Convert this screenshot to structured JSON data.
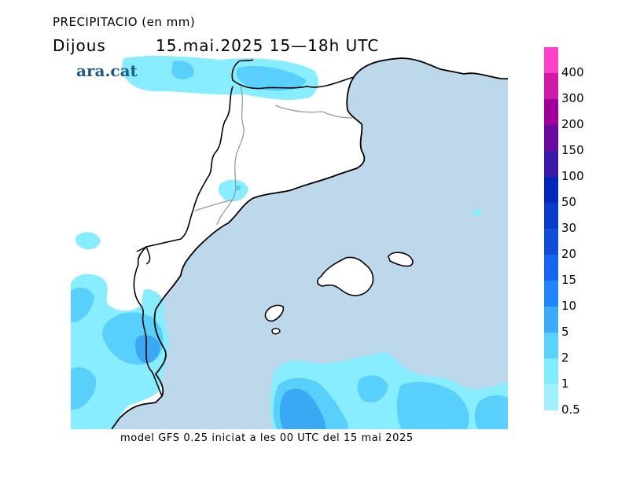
{
  "header": {
    "title": "PRECIPITACIO (en mm)",
    "day": "Dijous",
    "date": "15.mai.2025  15—18h  UTC"
  },
  "brand": "ara.cat",
  "footer": "model GFS 0.25 iniciat a les 00 UTC del 15 mai 2025",
  "legend": {
    "labels": [
      "0.5",
      "1",
      "2",
      "5",
      "10",
      "15",
      "20",
      "30",
      "50",
      "100",
      "150",
      "200",
      "300",
      "400"
    ],
    "colors": [
      "#a0f0ff",
      "#80ecff",
      "#5ad2ff",
      "#3aabff",
      "#1f86ff",
      "#1766ef",
      "#104dd8",
      "#0a3dc7",
      "#0028b8",
      "#3a1aa8",
      "#6a0aa0",
      "#a0009a",
      "#d01aa8",
      "#ff40c8",
      ""
    ]
  },
  "map_colors": {
    "sea": "#bcd8ea",
    "land": "#ffffff",
    "light": "#88eeff",
    "mid": "#58d0fb",
    "dark": "#3aa8f2",
    "coast": "#000000",
    "border": "#999999"
  }
}
